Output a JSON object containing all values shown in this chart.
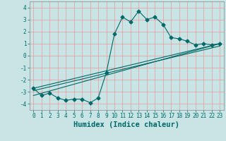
{
  "xlabel": "Humidex (Indice chaleur)",
  "background_color": "#c8e4e4",
  "grid_color": "#e89898",
  "line_color": "#006868",
  "xlim": [
    -0.5,
    23.5
  ],
  "ylim": [
    -4.5,
    4.5
  ],
  "xticks": [
    0,
    1,
    2,
    3,
    4,
    5,
    6,
    7,
    8,
    9,
    10,
    11,
    12,
    13,
    14,
    15,
    16,
    17,
    18,
    19,
    20,
    21,
    22,
    23
  ],
  "yticks": [
    -4,
    -3,
    -2,
    -1,
    0,
    1,
    2,
    3,
    4
  ],
  "main_x": [
    0,
    1,
    2,
    3,
    4,
    5,
    6,
    7,
    8,
    9,
    10,
    11,
    12,
    13,
    14,
    15,
    16,
    17,
    18,
    19,
    20,
    21,
    22,
    23
  ],
  "main_y": [
    -2.7,
    -3.3,
    -3.1,
    -3.5,
    -3.7,
    -3.6,
    -3.6,
    -3.9,
    -3.5,
    -1.4,
    1.8,
    3.2,
    2.8,
    3.7,
    3.0,
    3.2,
    2.6,
    1.5,
    1.4,
    1.2,
    0.9,
    1.0,
    0.9,
    1.0
  ],
  "line1_x": [
    0,
    23
  ],
  "line1_y": [
    -2.7,
    1.0
  ],
  "line2_x": [
    0,
    23
  ],
  "line2_y": [
    -3.3,
    1.0
  ],
  "line3_x": [
    0,
    23
  ],
  "line3_y": [
    -2.9,
    0.8
  ],
  "tick_fontsize": 5.5,
  "xlabel_fontsize": 7.5,
  "linewidth": 0.8,
  "markersize": 2.5
}
